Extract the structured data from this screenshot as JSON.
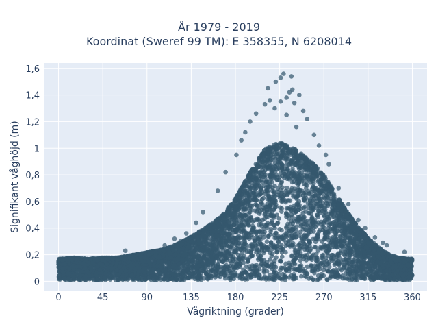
{
  "chart_data": {
    "type": "scatter",
    "title": "År 1979 - 2019",
    "subtitle": "Koordinat (Sweref 99 TM): E 358355, N 6208014",
    "xlabel": "Vågriktning (grader)",
    "ylabel": "Signifikant våghöjd (m)",
    "xlim": [
      -15,
      375
    ],
    "ylim": [
      -0.07,
      1.64
    ],
    "xticks": [
      0,
      45,
      90,
      135,
      180,
      225,
      270,
      315,
      360
    ],
    "yticks": [
      0,
      0.2,
      0.4,
      0.6,
      0.8,
      1.0,
      1.2,
      1.4,
      1.6
    ],
    "ytick_labels": [
      "0",
      "0,2",
      "0,4",
      "0,6",
      "0,8",
      "1",
      "1,2",
      "1,4",
      "1,6"
    ],
    "grid": true,
    "marker_color": "#34586e",
    "plot_bgcolor": "#e5ecf6",
    "envelope": {
      "direction": [
        0,
        15,
        30,
        45,
        60,
        75,
        90,
        105,
        120,
        135,
        150,
        165,
        180,
        195,
        210,
        225,
        240,
        255,
        270,
        285,
        300,
        315,
        330,
        345,
        360
      ],
      "max_height": [
        0.16,
        0.17,
        0.16,
        0.17,
        0.17,
        0.19,
        0.21,
        0.23,
        0.27,
        0.33,
        0.4,
        0.48,
        0.62,
        0.82,
        1.0,
        1.05,
        1.0,
        0.92,
        0.8,
        0.62,
        0.45,
        0.32,
        0.22,
        0.17,
        0.16
      ]
    },
    "outliers": [
      {
        "x": 229,
        "y": 1.56
      },
      {
        "x": 237,
        "y": 1.54
      },
      {
        "x": 226,
        "y": 1.53
      },
      {
        "x": 221,
        "y": 1.5
      },
      {
        "x": 213,
        "y": 1.45
      },
      {
        "x": 238,
        "y": 1.44
      },
      {
        "x": 235,
        "y": 1.42
      },
      {
        "x": 245,
        "y": 1.4
      },
      {
        "x": 232,
        "y": 1.38
      },
      {
        "x": 215,
        "y": 1.36
      },
      {
        "x": 226,
        "y": 1.35
      },
      {
        "x": 240,
        "y": 1.34
      },
      {
        "x": 210,
        "y": 1.33
      },
      {
        "x": 220,
        "y": 1.3
      },
      {
        "x": 249,
        "y": 1.28
      },
      {
        "x": 201,
        "y": 1.26
      },
      {
        "x": 232,
        "y": 1.25
      },
      {
        "x": 253,
        "y": 1.22
      },
      {
        "x": 195,
        "y": 1.2
      },
      {
        "x": 242,
        "y": 1.16
      },
      {
        "x": 190,
        "y": 1.12
      },
      {
        "x": 260,
        "y": 1.1
      },
      {
        "x": 186,
        "y": 1.06
      },
      {
        "x": 265,
        "y": 1.02
      },
      {
        "x": 272,
        "y": 0.95
      },
      {
        "x": 275,
        "y": 0.88
      },
      {
        "x": 181,
        "y": 0.95
      },
      {
        "x": 170,
        "y": 0.82
      },
      {
        "x": 285,
        "y": 0.7
      },
      {
        "x": 162,
        "y": 0.68
      },
      {
        "x": 295,
        "y": 0.58
      },
      {
        "x": 147,
        "y": 0.52
      },
      {
        "x": 305,
        "y": 0.46
      },
      {
        "x": 140,
        "y": 0.44
      },
      {
        "x": 312,
        "y": 0.4
      },
      {
        "x": 130,
        "y": 0.36
      },
      {
        "x": 322,
        "y": 0.33
      },
      {
        "x": 330,
        "y": 0.29
      },
      {
        "x": 334,
        "y": 0.27
      },
      {
        "x": 352,
        "y": 0.22
      },
      {
        "x": 108,
        "y": 0.27
      },
      {
        "x": 118,
        "y": 0.32
      },
      {
        "x": 68,
        "y": 0.23
      },
      {
        "x": 88,
        "y": 0.21
      },
      {
        "x": 124,
        "y": 0.3
      }
    ]
  }
}
